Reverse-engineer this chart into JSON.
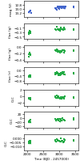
{
  "panels": [
    {
      "ylabel": "mag (V)",
      "color": "#4466cc",
      "ylim": [
        13.4,
        12.6
      ],
      "yticks": [
        13.2,
        13.0,
        12.8
      ],
      "points_x": [
        2040,
        2060,
        2080,
        2090,
        2100,
        2110,
        2120,
        2870,
        2880,
        2890,
        2900,
        2910,
        2920,
        2940,
        2950,
        2960,
        2970,
        2980,
        2990,
        3000,
        3010,
        3030,
        3050,
        3060,
        3070,
        3080,
        3090,
        3110,
        3120,
        3130,
        3140,
        3150,
        3160,
        3170,
        3180,
        3190,
        3440,
        3450
      ],
      "points_y": [
        13.15,
        13.18,
        13.12,
        13.05,
        13.08,
        13.1,
        13.14,
        12.95,
        12.97,
        13.0,
        13.02,
        12.98,
        13.05,
        12.95,
        12.93,
        12.96,
        12.98,
        12.94,
        12.92,
        12.95,
        12.97,
        12.94,
        12.94,
        12.92,
        12.9,
        12.95,
        12.97,
        12.93,
        12.9,
        12.95,
        12.97,
        12.92,
        12.88,
        12.9,
        12.95,
        12.92,
        12.92,
        12.95
      ]
    },
    {
      "ylabel": "flux (g)",
      "color": "#22aa44",
      "ylim": [
        -0.6,
        0.1
      ],
      "yticks": [
        -0.5,
        -0.3,
        -0.1
      ],
      "points_x": [
        2040,
        2060,
        2080,
        2090,
        2100,
        2110,
        2870,
        2880,
        2900,
        2920,
        2940,
        2960,
        2980,
        3000,
        3020,
        3040,
        3060,
        3080,
        3100,
        3120,
        3140,
        3160,
        3180,
        3440,
        3450
      ],
      "points_y": [
        -0.35,
        -0.3,
        -0.25,
        -0.28,
        -0.3,
        -0.32,
        -0.12,
        -0.15,
        -0.2,
        -0.1,
        -0.18,
        -0.12,
        -0.2,
        -0.15,
        -0.22,
        -0.18,
        -0.12,
        -0.2,
        -0.15,
        -0.18,
        -0.12,
        -0.2,
        -0.15,
        -0.18,
        -0.12
      ]
    },
    {
      "ylabel": "flux (g)",
      "color": "#22aa44",
      "ylim": [
        -0.45,
        0.05
      ],
      "yticks": [
        -0.4,
        -0.2,
        0.0
      ],
      "points_x": [
        2040,
        2060,
        2080,
        2090,
        2100,
        2110,
        2870,
        2880,
        2900,
        2920,
        2940,
        2960,
        2980,
        3000,
        3020,
        3040,
        3060,
        3080,
        3100,
        3120,
        3140,
        3160,
        3180,
        3440,
        3450
      ],
      "points_y": [
        -0.28,
        -0.25,
        -0.2,
        -0.22,
        -0.25,
        -0.27,
        -0.1,
        -0.12,
        -0.15,
        -0.08,
        -0.14,
        -0.1,
        -0.16,
        -0.12,
        -0.18,
        -0.14,
        -0.1,
        -0.16,
        -0.12,
        -0.14,
        -0.1,
        -0.16,
        -0.12,
        -0.14,
        -0.1
      ]
    },
    {
      "ylabel": "flux (r)",
      "color": "#22aa44",
      "ylim": [
        -1.0,
        0.2
      ],
      "yticks": [
        -0.8,
        -0.4,
        0.0
      ],
      "points_x": [
        2040,
        2060,
        2080,
        2090,
        2100,
        2110,
        2870,
        2880,
        2900,
        2920,
        2940,
        2960,
        2980,
        3000,
        3020,
        3040,
        3060,
        3080,
        3100,
        3120,
        3140,
        3160,
        3180,
        3440,
        3450
      ],
      "points_y": [
        -0.5,
        -0.45,
        -0.4,
        -0.42,
        -0.45,
        -0.48,
        -0.2,
        -0.22,
        -0.28,
        -0.15,
        -0.25,
        -0.18,
        -0.3,
        -0.22,
        -0.35,
        -0.28,
        -0.18,
        -0.3,
        -0.22,
        -0.28,
        -0.18,
        -0.3,
        -0.22,
        -0.28,
        -0.18
      ]
    },
    {
      "ylabel": "O-C",
      "color": "#22aa44",
      "ylim": [
        -3.0,
        2.0
      ],
      "yticks": [
        -2.0,
        0.0,
        2.0
      ],
      "points_x": [
        2040,
        2060,
        2080,
        2090,
        2100,
        2110,
        2870,
        2880,
        2900,
        2920,
        2940,
        2960,
        2980,
        3000,
        3020,
        3040,
        3060,
        3080,
        3100,
        3120,
        3140,
        3160,
        3180,
        3440,
        3450
      ],
      "points_y": [
        -1.0,
        -0.8,
        -0.6,
        -0.7,
        -0.8,
        -0.9,
        -0.3,
        -0.4,
        -0.5,
        -0.2,
        -0.4,
        -0.3,
        -0.5,
        -0.35,
        -0.6,
        -0.45,
        -0.3,
        -0.5,
        -0.35,
        -0.45,
        -0.3,
        -0.5,
        -0.35,
        -0.45,
        -0.3
      ]
    },
    {
      "ylabel": "O-C",
      "color": "#22aa44",
      "ylim": [
        -50.0,
        30.0
      ],
      "yticks": [
        -40.0,
        -20.0,
        0.0,
        20.0
      ],
      "points_x": [
        2040,
        2060,
        2080,
        2090,
        2100,
        2110,
        2870,
        2880,
        2900,
        2920,
        2940,
        2960,
        2980,
        3000,
        3020,
        3040,
        3060,
        3080,
        3100,
        3120,
        3140,
        3160,
        3180,
        3440,
        3450
      ],
      "points_y": [
        -20.0,
        -18.0,
        -12.0,
        -15.0,
        -18.0,
        -20.0,
        -5.0,
        -8.0,
        -10.0,
        -3.0,
        -8.0,
        -5.0,
        -12.0,
        -8.0,
        -15.0,
        -10.0,
        -5.0,
        -12.0,
        -8.0,
        -10.0,
        -5.0,
        -12.0,
        -8.0,
        -10.0,
        -5.0
      ]
    },
    {
      "ylabel": "O-C",
      "color": "#22aa44",
      "ylim": [
        -0.015,
        0.005
      ],
      "yticks": [
        -0.01,
        -0.005,
        0.0
      ],
      "points_x": [
        2040,
        2060,
        2080,
        2090,
        2100,
        2110,
        2870,
        2880,
        2900,
        2920,
        2940,
        2960,
        2980,
        3000,
        3020,
        3040,
        3060,
        3080,
        3100,
        3120,
        3140,
        3160,
        3180,
        3440,
        3450
      ],
      "points_y": [
        -0.006,
        -0.005,
        -0.004,
        -0.005,
        -0.005,
        -0.006,
        -0.002,
        -0.003,
        -0.004,
        -0.001,
        -0.003,
        -0.002,
        -0.004,
        -0.003,
        -0.005,
        -0.004,
        -0.002,
        -0.004,
        -0.003,
        -0.004,
        -0.002,
        -0.004,
        -0.003,
        -0.004,
        -0.002
      ]
    }
  ],
  "xlabel": "Time (BJD - 2457000)",
  "xlim": [
    1900,
    3600
  ],
  "xticks": [
    2000,
    2500,
    3000,
    3500
  ],
  "bg_color": "#ffffff",
  "marker_size": 1.8
}
